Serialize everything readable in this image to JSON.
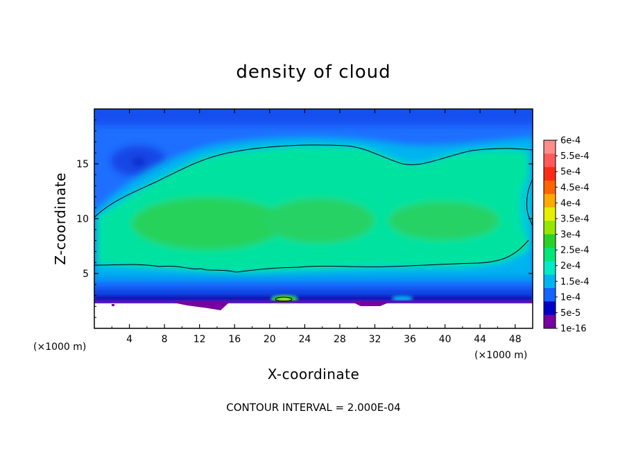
{
  "chart_data": {
    "type": "heatmap",
    "title": "density of cloud",
    "xlabel": "X-coordinate",
    "ylabel": "Z-coordinate",
    "x_unit": "(×1000 m)",
    "y_unit": "(×1000 m)",
    "xlim": [
      0,
      50
    ],
    "ylim": [
      0,
      20
    ],
    "x_ticks": [
      "4",
      "8",
      "12",
      "16",
      "20",
      "24",
      "28",
      "32",
      "36",
      "40",
      "44",
      "48"
    ],
    "y_ticks": [
      "5",
      "10",
      "15"
    ],
    "colorbar": {
      "labels": [
        "6e-4",
        "5.5e-4",
        "5e-4",
        "4.5e-4",
        "4e-4",
        "3.5e-4",
        "3e-4",
        "2.5e-4",
        "2e-4",
        "1.5e-4",
        "1e-4",
        "5e-5",
        "1e-16"
      ],
      "colors": [
        "#ff8c8c",
        "#ff5a5a",
        "#ff2a14",
        "#ff6400",
        "#ffaa00",
        "#e6f000",
        "#96e600",
        "#28d228",
        "#00e678",
        "#00ebc8",
        "#00b4f0",
        "#1464ff",
        "#0000c8",
        "#7800a0"
      ]
    },
    "contour_levels": [
      0.0002
    ],
    "footer": "CONTOUR INTERVAL = 2.000E-04"
  }
}
